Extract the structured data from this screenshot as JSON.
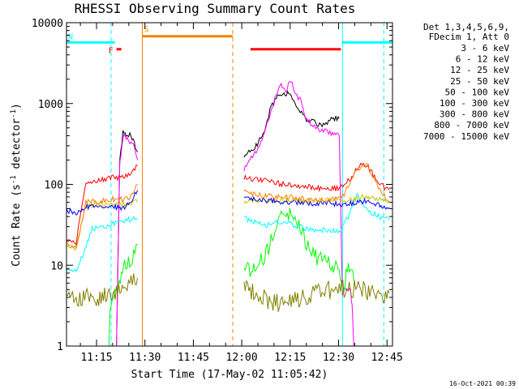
{
  "chart_data": {
    "type": "line",
    "title": "RHESSI Observing Summary Count Rates",
    "xlabel": "Start Time (17-May-02 11:05:42)",
    "ylabel": "Count Rate (s",
    "ylabel_sup1": "-1",
    "ylabel_mid": " detector",
    "ylabel_sup2": "-1",
    "ylabel_end": ")",
    "y_scale": "log",
    "ylim": [
      1,
      10000
    ],
    "xlim_minutes": [
      0,
      101
    ],
    "x_tick_labels": [
      "11:15",
      "11:30",
      "11:45",
      "12:00",
      "12:15",
      "12:30",
      "12:45"
    ],
    "x_tick_minutes": [
      9.3,
      24.3,
      39.3,
      54.3,
      69.3,
      84.3,
      99.3
    ],
    "y_tick_labels": [
      "1",
      "10",
      "100",
      "1000",
      "10000"
    ],
    "y_tick_values": [
      1,
      10,
      100,
      1000,
      10000
    ],
    "legend_header": [
      "Det 1,3,4,5,6,9,",
      "FDecim 1, Att 0"
    ],
    "legend_placement": "right",
    "series": [
      {
        "name": "3 - 6 keV",
        "color": "#000000",
        "segments": [
          {
            "x": [
              0,
              8,
              12,
              15.5,
              16.5,
              17.5,
              18.5,
              20,
              21,
              22
            ],
            "y": [
              0.01,
              0.01,
              0.01,
              1,
              200,
              440,
              420,
              400,
              330,
              250
            ]
          },
          {
            "x": [
              55,
              58,
              61,
              63,
              65,
              67,
              68.5,
              70,
              72,
              74,
              76,
              78,
              80,
              82,
              84.5
            ],
            "y": [
              230,
              270,
              420,
              800,
              1200,
              1300,
              1350,
              1200,
              850,
              650,
              600,
              550,
              550,
              650,
              650
            ]
          }
        ]
      },
      {
        "name": "6 - 12 keV",
        "color": "#ff00ff",
        "segments": [
          {
            "x": [
              0,
              8,
              12,
              15.5,
              16.5,
              17.5,
              18.5,
              20,
              21,
              22
            ],
            "y": [
              0.01,
              0.01,
              0.01,
              1,
              180,
              400,
              370,
              330,
              280,
              200
            ]
          },
          {
            "x": [
              55,
              58,
              61,
              63,
              65,
              66.5,
              68,
              69.5,
              71,
              72.5,
              74,
              76,
              78,
              80,
              82,
              84.5,
              85.5,
              86,
              87,
              88,
              88.5,
              89
            ],
            "y": [
              150,
              230,
              380,
              750,
              1300,
              1700,
              1500,
              1900,
              1300,
              1100,
              700,
              550,
              480,
              450,
              420,
              400,
              4,
              5.5,
              5,
              5,
              3,
              1
            ]
          }
        ]
      },
      {
        "name": "12 - 25 keV",
        "color": "#00ff00",
        "segments": [
          {
            "x": [
              0,
              8,
              12,
              13.5,
              15,
              16,
              17,
              18,
              20,
              22
            ],
            "y": [
              0.01,
              0.01,
              0.01,
              2.5,
              4,
              6,
              8,
              10,
              12,
              18
            ]
          },
          {
            "x": [
              55,
              58,
              61,
              63,
              65,
              66.5,
              68,
              70,
              72,
              74,
              76,
              78,
              80,
              82,
              84.5,
              85.5,
              86,
              87,
              88,
              89
            ],
            "y": [
              9,
              9,
              12,
              18,
              26,
              38,
              45,
              40,
              32,
              20,
              14,
              12,
              11,
              10,
              9,
              4.5,
              6,
              9,
              8.5,
              6.5
            ]
          }
        ]
      },
      {
        "name": "25 - 50 keV",
        "color": "#00ffff",
        "segments": [
          {
            "x": [
              0,
              2,
              3,
              8,
              12,
              14,
              16,
              18,
              20,
              22
            ],
            "y": [
              9,
              8.5,
              8.2,
              28,
              30,
              32,
              33,
              36,
              37,
              37
            ]
          },
          {
            "x": [
              55,
              58,
              61,
              63,
              65,
              68,
              70,
              72,
              74,
              76,
              78,
              80,
              82,
              84.5,
              86,
              88,
              90,
              92,
              94,
              97,
              100
            ],
            "y": [
              38,
              35,
              32,
              31,
              34,
              35,
              32,
              30,
              29,
              28,
              27,
              27,
              27,
              27,
              32,
              45,
              80,
              55,
              45,
              40,
              36
            ]
          }
        ]
      },
      {
        "name": "50 - 100 keV",
        "color": "#c8c800",
        "segments": [
          {
            "x": [
              0,
              2,
              3,
              6,
              10,
              14,
              18,
              22
            ],
            "y": [
              18,
              17,
              16,
              56,
              56,
              56,
              58,
              60
            ]
          },
          {
            "x": [
              55,
              60,
              65,
              70,
              75,
              80,
              84.5,
              88,
              92,
              96,
              100
            ],
            "y": [
              62,
              64,
              64,
              63,
              63,
              63,
              63,
              64,
              70,
              68,
              62
            ]
          }
        ]
      },
      {
        "name": "100 - 300 keV",
        "color": "#ff0000",
        "segments": [
          {
            "x": [
              0,
              2,
              3,
              6,
              10,
              14,
              18,
              20,
              22
            ],
            "y": [
              20,
              19,
              19,
              105,
              115,
              120,
              125,
              135,
              170
            ]
          },
          {
            "x": [
              55,
              58,
              62,
              66,
              70,
              74,
              78,
              82,
              84.5,
              86,
              88,
              90,
              92,
              93.5,
              95,
              97,
              100
            ],
            "y": [
              120,
              115,
              110,
              102,
              98,
              95,
              90,
              88,
              90,
              95,
              120,
              155,
              180,
              165,
              130,
              100,
              85
            ]
          }
        ]
      },
      {
        "name": "300 - 800 keV",
        "color": "#0000ff",
        "segments": [
          {
            "x": [
              0,
              3,
              6,
              10,
              14,
              18,
              20,
              22
            ],
            "y": [
              48,
              45,
              52,
              52,
              52,
              52,
              60,
              85
            ]
          },
          {
            "x": [
              55,
              58,
              62,
              66,
              70,
              74,
              78,
              82,
              84.5,
              88,
              92,
              96,
              100
            ],
            "y": [
              70,
              67,
              64,
              62,
              60,
              59,
              58,
              58,
              56,
              58,
              62,
              57,
              52
            ]
          }
        ]
      },
      {
        "name": "800 - 7000 keV",
        "color": "#ff8000",
        "segments": [
          {
            "x": [
              0,
              2,
              3,
              6,
              10,
              14,
              18,
              20,
              22
            ],
            "y": [
              18,
              17,
              16,
              60,
              62,
              65,
              66,
              70,
              100
            ]
          },
          {
            "x": [
              55,
              58,
              62,
              66,
              70,
              74,
              78,
              82,
              84.5,
              86,
              88,
              90,
              92,
              93.5,
              95,
              97,
              100
            ],
            "y": [
              80,
              75,
              72,
              70,
              68,
              66,
              65,
              65,
              66,
              75,
              110,
              150,
              180,
              170,
              120,
              85,
              60
            ]
          }
        ]
      },
      {
        "name": "7000 - 15000 keV",
        "color": "#808000",
        "segments": [
          {
            "x": [
              0,
              3,
              6,
              10,
              14,
              18,
              20,
              22
            ],
            "y": [
              5,
              4,
              4,
              4,
              4,
              5,
              6,
              7
            ]
          },
          {
            "x": [
              55,
              58,
              60,
              62,
              64,
              66,
              68,
              70,
              72,
              74,
              76,
              78,
              80,
              82,
              84.5,
              86,
              88,
              90,
              92,
              94,
              97,
              100
            ],
            "y": [
              5,
              4.5,
              4.2,
              3.8,
              3.6,
              3.4,
              3.3,
              3.5,
              3.7,
              4,
              4.2,
              4.5,
              4.8,
              5,
              5,
              5,
              5,
              5,
              5,
              4.8,
              4.5,
              4.5
            ]
          }
        ]
      }
    ],
    "flags": [
      {
        "label": "F",
        "color": "#ff0000",
        "x_start": 15.5,
        "x_end": 17,
        "y": 4500,
        "y_bar": 4700
      },
      {
        "label": "N",
        "color": "#00ffff",
        "x_start": 0,
        "x_end": 15,
        "y": 5700,
        "y_bar": 5700
      },
      {
        "label": "S",
        "color": "#ff8000",
        "x_start": 23.5,
        "x_end": 51.5,
        "y": 7000,
        "y_bar": 6800
      },
      {
        "label": "",
        "color": "#ff0000",
        "x_start": 57,
        "x_end": 85,
        "y": 4700,
        "y_bar": 4700
      },
      {
        "label": "",
        "color": "#00ffff",
        "x_start": 85.5,
        "x_end": 101,
        "y": 5700,
        "y_bar": 5700
      }
    ],
    "vertical_lines": [
      {
        "x": 0,
        "color": "#00ffff",
        "style": "solid"
      },
      {
        "x": 13.8,
        "color": "#00ffff",
        "style": "dashed"
      },
      {
        "x": 23.5,
        "color": "#ff8000",
        "style": "solid"
      },
      {
        "x": 51.5,
        "color": "#ff8000",
        "style": "dashed"
      },
      {
        "x": 85.5,
        "color": "#00ffff",
        "style": "solid"
      },
      {
        "x": 98.3,
        "color": "#00ffff",
        "style": "dashed"
      }
    ],
    "timestamp": "16-Oct-2021 00:39"
  }
}
